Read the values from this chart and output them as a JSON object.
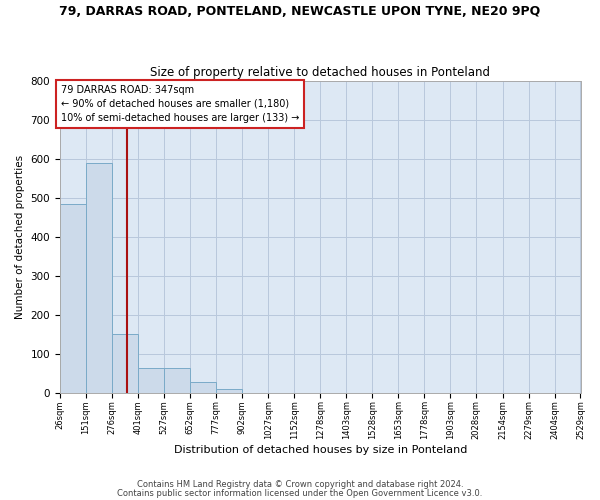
{
  "title": "79, DARRAS ROAD, PONTELAND, NEWCASTLE UPON TYNE, NE20 9PQ",
  "subtitle": "Size of property relative to detached houses in Ponteland",
  "xlabel": "Distribution of detached houses by size in Ponteland",
  "ylabel": "Number of detached properties",
  "bar_color": "#ccdaea",
  "bar_edge_color": "#7aaac8",
  "grid_color": "#b8c8dc",
  "background_color": "#dde8f4",
  "vline_x": 347,
  "vline_color": "#aa1111",
  "annotation_line1": "79 DARRAS ROAD: 347sqm",
  "annotation_line2": "← 90% of detached houses are smaller (1,180)",
  "annotation_line3": "10% of semi-detached houses are larger (133) →",
  "annotation_box_color": "white",
  "annotation_box_edge": "#cc2222",
  "footnote1": "Contains HM Land Registry data © Crown copyright and database right 2024.",
  "footnote2": "Contains public sector information licensed under the Open Government Licence v3.0.",
  "bin_edges": [
    26,
    151,
    276,
    401,
    527,
    652,
    777,
    902,
    1027,
    1152,
    1278,
    1403,
    1528,
    1653,
    1778,
    1903,
    2028,
    2154,
    2279,
    2404,
    2529
  ],
  "bar_heights": [
    485,
    590,
    150,
    62,
    62,
    26,
    10,
    0,
    0,
    0,
    0,
    0,
    0,
    0,
    0,
    0,
    0,
    0,
    0,
    0
  ],
  "ylim": [
    0,
    800
  ],
  "yticks": [
    0,
    100,
    200,
    300,
    400,
    500,
    600,
    700,
    800
  ]
}
